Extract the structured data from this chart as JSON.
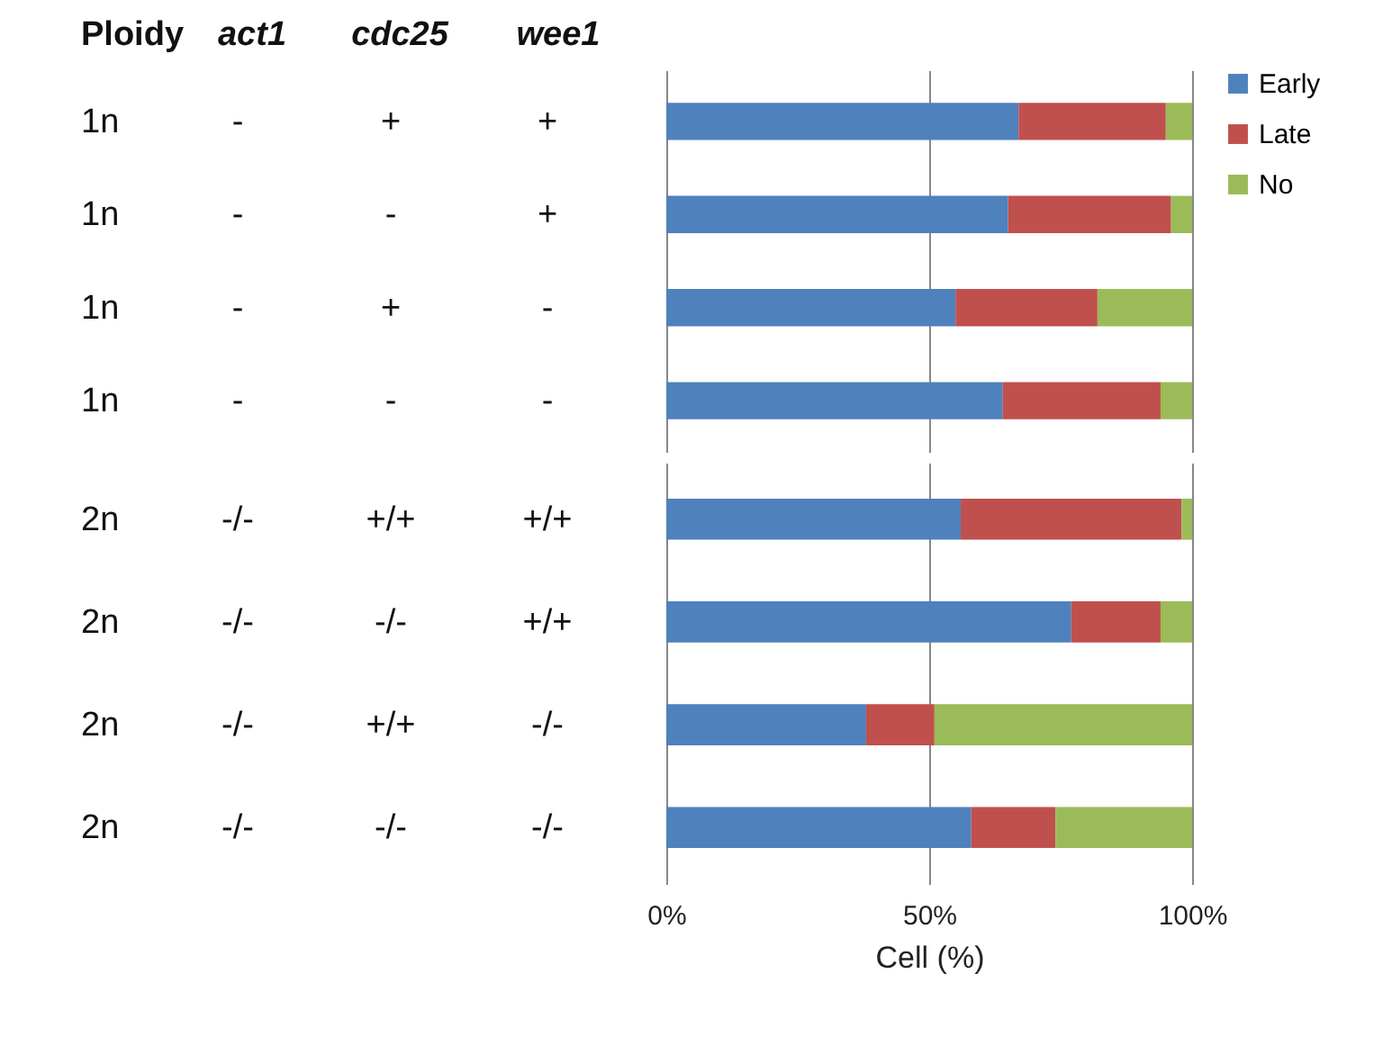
{
  "chart_data": [
    {
      "type": "bar",
      "orientation": "horizontal",
      "stacked": true,
      "ylabel": "Ploidy act1 cdc25 wee1",
      "categories": [
        "1n - + +",
        "1n - - +",
        "1n - + -",
        "1n - - -"
      ],
      "series": [
        {
          "name": "Early",
          "color": "#4f81bd",
          "values": [
            67,
            65,
            55,
            64
          ]
        },
        {
          "name": "Late",
          "color": "#c0504d",
          "values": [
            28,
            31,
            27,
            30
          ]
        },
        {
          "name": "No",
          "color": "#9bbb59",
          "values": [
            5,
            4,
            18,
            6
          ]
        }
      ],
      "xlim": [
        0,
        100
      ],
      "xticks": [
        0,
        50,
        100
      ],
      "grid": "x",
      "legend": "right",
      "tick_labels": "y"
    },
    {
      "type": "bar",
      "orientation": "horizontal",
      "stacked": true,
      "xlabel": "Cell (%)",
      "categories": [
        "2n -/- +/+ +/+",
        "2n -/- -/- +/+",
        "2n -/- +/+ -/-",
        "2n -/- -/- -/-"
      ],
      "series": [
        {
          "color": "#4f81bd",
          "values": [
            56,
            77,
            38,
            58
          ]
        },
        {
          "color": "#c0504d",
          "values": [
            42,
            17,
            13,
            16
          ]
        },
        {
          "color": "#9bbb59",
          "values": [
            2,
            6,
            49,
            26
          ]
        }
      ],
      "xlim": [
        0,
        100
      ],
      "xticks": [
        {
          "value": 0,
          "label": "0%"
        },
        {
          "value": 50,
          "label": "50%"
        },
        {
          "value": 100,
          "label": "100%"
        }
      ],
      "grid": "x"
    }
  ]
}
